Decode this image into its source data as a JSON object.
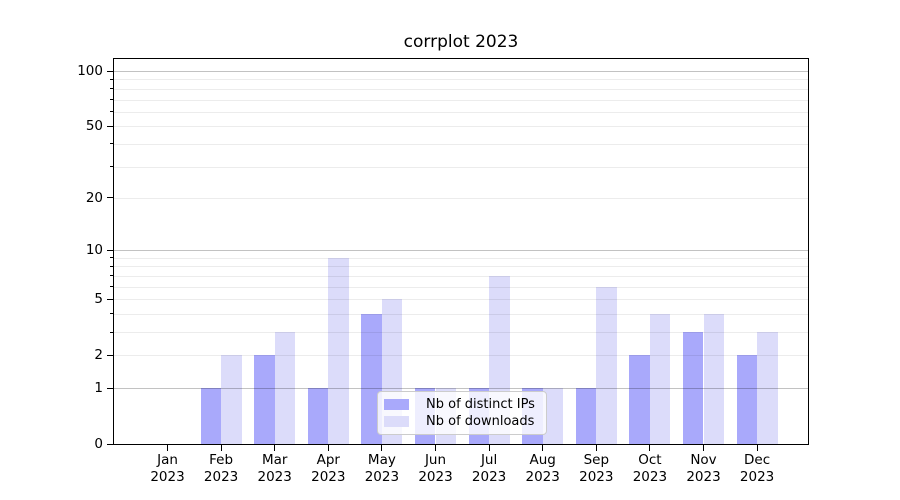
{
  "chart_data": {
    "type": "bar",
    "title": "corrplot 2023",
    "categories": [
      "Jan",
      "Feb",
      "Mar",
      "Apr",
      "May",
      "Jun",
      "Jul",
      "Aug",
      "Sep",
      "Oct",
      "Nov",
      "Dec"
    ],
    "category_year": "2023",
    "series": [
      {
        "name": "Nb of distinct IPs",
        "color": "#a9a9fb",
        "values": [
          0,
          1,
          2,
          1,
          4,
          1,
          1,
          1,
          1,
          2,
          3,
          2
        ]
      },
      {
        "name": "Nb of downloads",
        "color": "#dcdcfa",
        "values": [
          0,
          2,
          3,
          9,
          5,
          1,
          7,
          1,
          6,
          4,
          4,
          3
        ]
      }
    ],
    "xlabel": "",
    "ylabel": "",
    "yscale": "log1p",
    "ylim": [
      0,
      117
    ],
    "yticks_labeled": [
      0,
      1,
      2,
      5,
      10,
      20,
      50,
      100
    ],
    "ygrid_major": [
      1,
      10,
      100
    ],
    "ygrid_minor": [
      2,
      3,
      4,
      5,
      6,
      7,
      8,
      9,
      20,
      30,
      40,
      50,
      60,
      70,
      80,
      90
    ],
    "yticks_minor_marks": [
      3,
      4,
      6,
      7,
      8,
      9,
      30,
      40,
      60,
      70,
      80,
      90
    ],
    "grid": true,
    "legend_position": "lower center",
    "colors": {
      "spine": "#000000",
      "grid_major": "rgba(0,0,0,0.24)",
      "grid_minor": "rgba(0,0,0,0.075)",
      "legend_border": "#cccccc",
      "text": "#000000"
    }
  }
}
